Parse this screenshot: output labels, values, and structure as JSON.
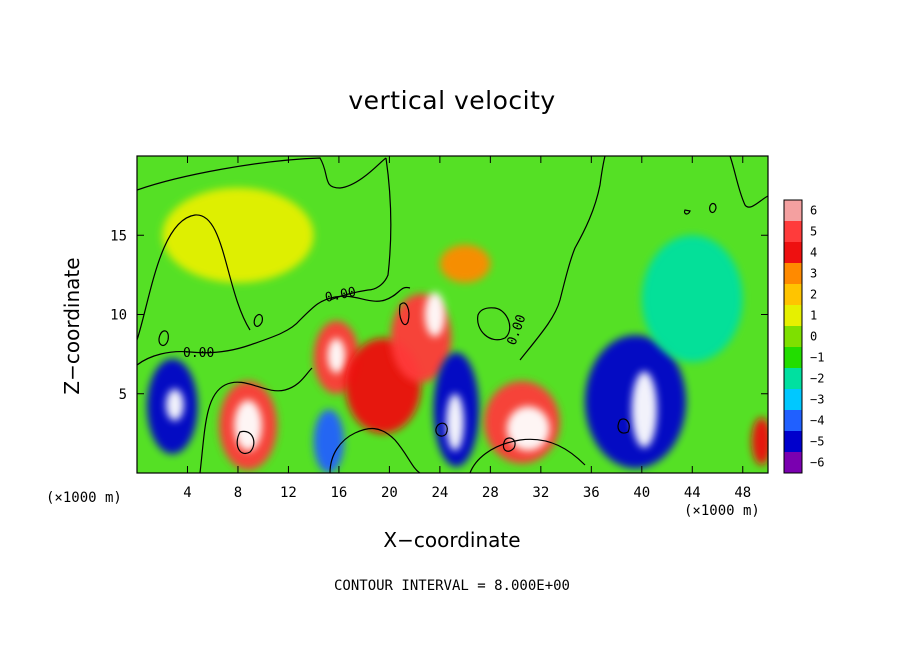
{
  "chart_data": {
    "type": "heatmap",
    "title": "vertical velocity",
    "xlabel": "X−coordinate",
    "ylabel": "Z−coordinate",
    "x_unit_label": "(×1000 m)",
    "footer": "CONTOUR INTERVAL = 8.000E+00",
    "xlim": [
      0,
      50
    ],
    "ylim": [
      0,
      20
    ],
    "x_ticks": [
      4,
      8,
      12,
      16,
      20,
      24,
      28,
      32,
      36,
      40,
      44,
      48
    ],
    "y_ticks": [
      5,
      10,
      15
    ],
    "colorbar": {
      "levels": [
        6,
        5,
        4,
        3,
        2,
        1,
        0,
        -1,
        -2,
        -3,
        -4,
        -5,
        -6
      ],
      "labels": [
        "6",
        "5",
        "4",
        "3",
        "2",
        "1",
        "0",
        "−1",
        "−2",
        "−3",
        "−4",
        "−5",
        "−6"
      ],
      "colors": [
        "#f4a0a0",
        "#ff3b3b",
        "#ee1010",
        "#ff8a00",
        "#ffc400",
        "#e6f000",
        "#7ee000",
        "#22dd00",
        "#00e0a0",
        "#00c8ff",
        "#2060ff",
        "#0000cc",
        "#7a00b0"
      ]
    },
    "background_color": "#55e025",
    "contour_labels": [
      "0.00",
      "0.00",
      "0.00"
    ],
    "features": [
      {
        "x": 2.8,
        "z": 4.2,
        "value": -5,
        "rx": 2.0,
        "rz": 3.0
      },
      {
        "x": 3.0,
        "z": 4.3,
        "value": -6.5,
        "rx": 0.7,
        "rz": 1.0
      },
      {
        "x": 8.8,
        "z": 3.0,
        "value": 5,
        "rx": 2.3,
        "rz": 2.8
      },
      {
        "x": 8.8,
        "z": 3.0,
        "value": 6.5,
        "rx": 1.1,
        "rz": 1.6
      },
      {
        "x": 15.2,
        "z": 2.0,
        "value": -4,
        "rx": 1.2,
        "rz": 2.0
      },
      {
        "x": 15.8,
        "z": 7.3,
        "value": 5,
        "rx": 1.8,
        "rz": 2.3
      },
      {
        "x": 15.8,
        "z": 7.4,
        "value": 6.5,
        "rx": 0.7,
        "rz": 1.1
      },
      {
        "x": 19.5,
        "z": 5.5,
        "value": 3.5,
        "rx": 3.0,
        "rz": 3.0
      },
      {
        "x": 22.5,
        "z": 8.5,
        "value": 4.5,
        "rx": 2.4,
        "rz": 2.8
      },
      {
        "x": 23.6,
        "z": 10.0,
        "value": 6.5,
        "rx": 0.8,
        "rz": 1.4
      },
      {
        "x": 25.3,
        "z": 4.0,
        "value": -5,
        "rx": 1.8,
        "rz": 3.6
      },
      {
        "x": 25.2,
        "z": 3.2,
        "value": -6.5,
        "rx": 0.7,
        "rz": 1.8
      },
      {
        "x": 26.0,
        "z": 13.2,
        "value": 2.5,
        "rx": 2.0,
        "rz": 1.2
      },
      {
        "x": 30.5,
        "z": 3.2,
        "value": 5,
        "rx": 3.0,
        "rz": 2.6
      },
      {
        "x": 31.0,
        "z": 2.8,
        "value": 6.5,
        "rx": 1.7,
        "rz": 1.4
      },
      {
        "x": 39.5,
        "z": 4.5,
        "value": -5,
        "rx": 4.0,
        "rz": 4.2
      },
      {
        "x": 40.2,
        "z": 4.0,
        "value": -6.5,
        "rx": 1.0,
        "rz": 2.4
      },
      {
        "x": 44.0,
        "z": 11.0,
        "value": -2,
        "rx": 4.0,
        "rz": 4.0
      },
      {
        "x": 8.0,
        "z": 15.0,
        "value": 1.2,
        "rx": 6.0,
        "rz": 3.0
      },
      {
        "x": 49.5,
        "z": 2.0,
        "value": 3.5,
        "rx": 0.8,
        "rz": 1.5
      }
    ]
  }
}
